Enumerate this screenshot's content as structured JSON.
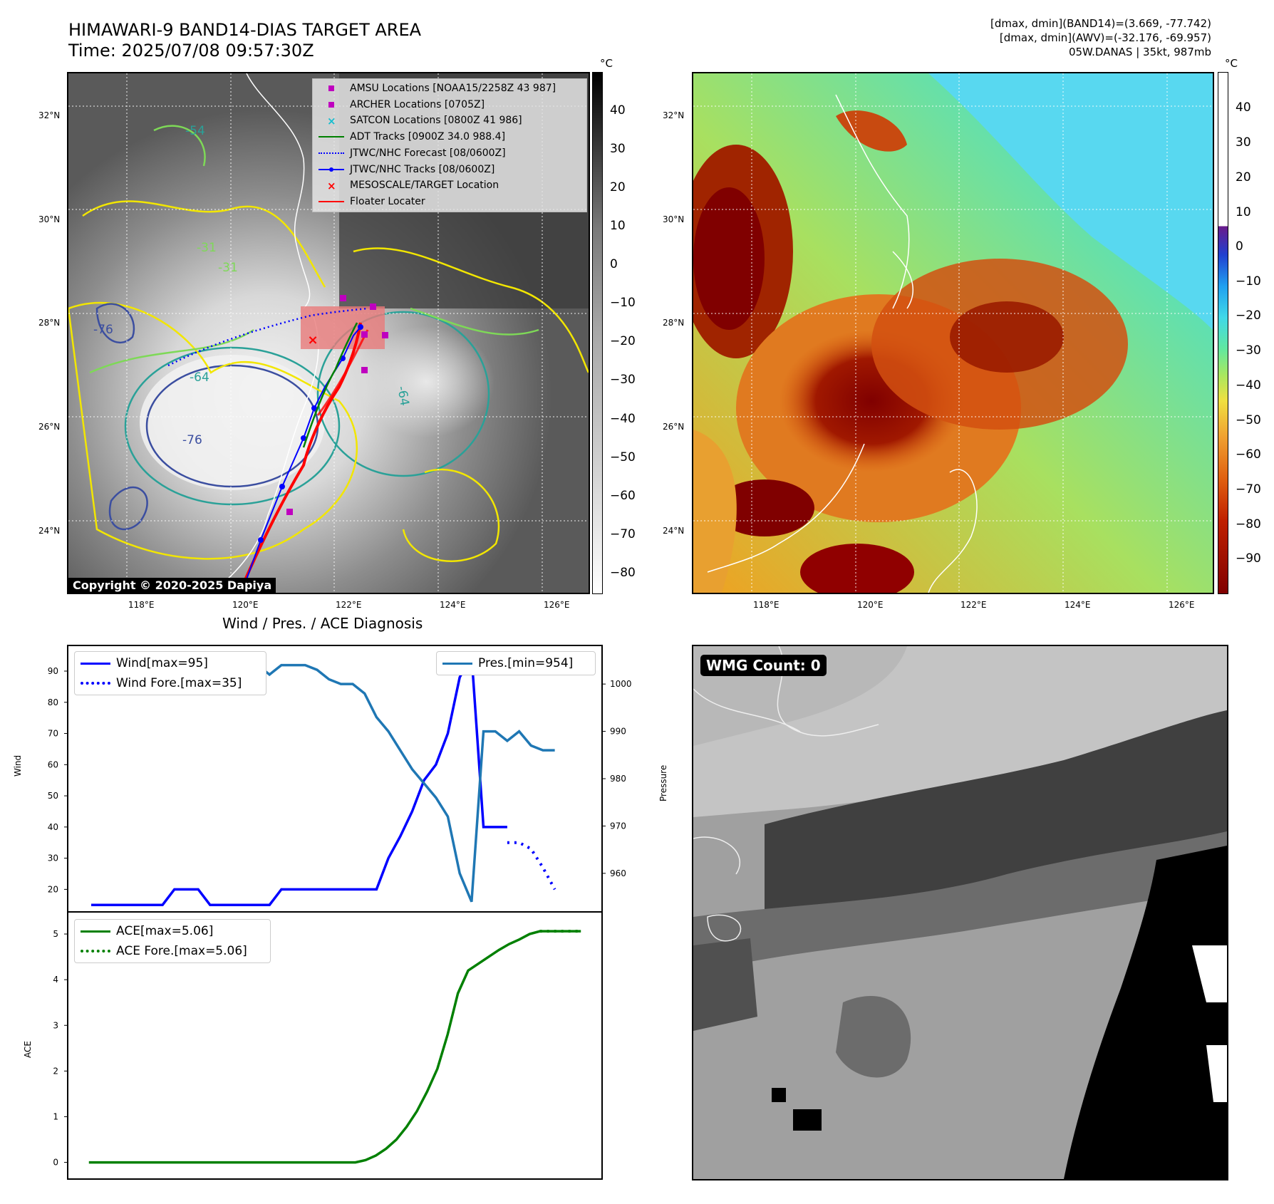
{
  "header": {
    "title_line1": "HIMAWARI-9 BAND14-DIAS TARGET AREA",
    "title_line2": "Time: 2025/07/08 09:57:30Z",
    "info_line1": "[dmax, dmin](BAND14)=(3.669, -77.742)",
    "info_line2": "[dmax, dmin](AWV)=(-32.176, -69.957)",
    "info_line3": "05W.DANAS | 35kt, 987mb"
  },
  "map": {
    "lat_labels": [
      "32°N",
      "30°N",
      "28°N",
      "26°N",
      "24°N"
    ],
    "lon_labels": [
      "118°E",
      "120°E",
      "122°E",
      "124°E",
      "126°E"
    ],
    "contour_labels": [
      "-54",
      "-31",
      "-76",
      "-64",
      "-76",
      "-31",
      "-64"
    ],
    "copyright": "Copyright © 2020-2025 Dapiya",
    "legend": [
      {
        "label": "AMSU Locations [NOAA15/2258Z 43 987]",
        "color": "#bf00bf",
        "kind": "square"
      },
      {
        "label": "ARCHER Locations [0705Z]",
        "color": "#bf00bf",
        "kind": "square"
      },
      {
        "label": "SATCON Locations [0800Z 41 986]",
        "color": "#17becf",
        "kind": "x"
      },
      {
        "label": "ADT Tracks [0900Z 34.0 988.4]",
        "color": "#008000",
        "kind": "line"
      },
      {
        "label": "JTWC/NHC Forecast [08/0600Z]",
        "color": "#0000ff",
        "kind": "dotted"
      },
      {
        "label": "JTWC/NHC Tracks [08/0600Z]",
        "color": "#0000ff",
        "kind": "linedot"
      },
      {
        "label": "MESOSCALE/TARGET Location",
        "color": "#ff0000",
        "kind": "x"
      },
      {
        "label": "Floater Locater",
        "color": "#ff0000",
        "kind": "line"
      }
    ]
  },
  "colorbar_left": {
    "unit": "°C",
    "ticks": [
      "40",
      "30",
      "20",
      "10",
      "0",
      "−10",
      "−20",
      "−30",
      "−40",
      "−50",
      "−60",
      "−70",
      "−80"
    ]
  },
  "colorbar_right": {
    "unit": "°C",
    "ticks": [
      "40",
      "30",
      "20",
      "10",
      "0",
      "−10",
      "−20",
      "−30",
      "−40",
      "−50",
      "−60",
      "−70",
      "−80",
      "−90"
    ]
  },
  "wind_panel": {
    "title": "Wind / Pres. / ACE Diagnosis",
    "left_axis_label": "Wind",
    "right_axis_label": "Pressure",
    "left_ticks": [
      "90",
      "80",
      "70",
      "60",
      "50",
      "40",
      "30",
      "20"
    ],
    "right_ticks": [
      "1000",
      "990",
      "980",
      "970",
      "960"
    ],
    "legend_wind": "Wind[max=95]",
    "legend_wind_fore": "Wind Fore.[max=35]",
    "legend_pres": "Pres.[min=954]",
    "colors": {
      "wind": "#0000ff",
      "pres": "#1f77b4"
    }
  },
  "ace_panel": {
    "axis_label": "ACE",
    "ticks": [
      "5",
      "4",
      "3",
      "2",
      "1",
      "0"
    ],
    "legend_ace": "ACE[max=5.06]",
    "legend_ace_fore": "ACE Fore.[max=5.06]",
    "color": "#008000"
  },
  "wmg_panel": {
    "label": "WMG Count: 0"
  },
  "chart_data": [
    {
      "type": "line",
      "title": "Wind / Pres. / ACE Diagnosis",
      "xlabel": "",
      "ylabel": "Wind",
      "ylabel_right": "Pressure",
      "ylim": [
        13,
        98
      ],
      "ylim_right": [
        952,
        1008
      ],
      "series": [
        {
          "name": "Wind[max=95]",
          "axis": "left",
          "x": [
            0,
            1,
            2,
            3,
            4,
            5,
            6,
            7,
            8,
            9,
            10,
            11,
            12,
            13,
            14,
            15,
            16,
            17,
            18,
            19,
            20,
            21,
            22,
            23,
            24,
            25,
            26,
            27,
            28,
            29,
            30,
            31,
            32,
            33,
            34,
            35
          ],
          "values": [
            15,
            15,
            15,
            15,
            15,
            15,
            15,
            20,
            20,
            20,
            15,
            15,
            15,
            15,
            15,
            15,
            20,
            20,
            20,
            20,
            20,
            20,
            20,
            20,
            20,
            30,
            37,
            45,
            55,
            60,
            70,
            88,
            95,
            40,
            40,
            40
          ]
        },
        {
          "name": "Wind Fore.[max=35]",
          "axis": "left",
          "x": [
            35,
            36,
            37,
            38,
            39
          ],
          "values": [
            35,
            35,
            33,
            27,
            20
          ]
        },
        {
          "name": "Pres.[min=954]",
          "axis": "right",
          "x": [
            0,
            1,
            2,
            3,
            4,
            5,
            6,
            7,
            8,
            9,
            10,
            11,
            12,
            13,
            14,
            15,
            16,
            17,
            18,
            19,
            20,
            21,
            22,
            23,
            24,
            25,
            26,
            27,
            28,
            29,
            30,
            31,
            32,
            33,
            34,
            35,
            36,
            37,
            38,
            39
          ],
          "values": [
            1005,
            1005,
            1005,
            1005,
            1005,
            1003,
            1003,
            1003,
            1003,
            1002,
            1003,
            1003,
            1004,
            1004,
            1004,
            1002,
            1004,
            1004,
            1004,
            1003,
            1001,
            1000,
            1000,
            998,
            993,
            990,
            986,
            982,
            979,
            976,
            972,
            960,
            954,
            990,
            990,
            988,
            990,
            987,
            986,
            986
          ]
        }
      ]
    },
    {
      "type": "line",
      "title": "",
      "xlabel": "",
      "ylabel": "ACE",
      "ylim": [
        -0.1,
        5.25
      ],
      "series": [
        {
          "name": "ACE[max=5.06]",
          "x": [
            0,
            4,
            8,
            12,
            16,
            20,
            24,
            26,
            27,
            28,
            29,
            30,
            31,
            32,
            33,
            34,
            35,
            36,
            37,
            38,
            39,
            40,
            41,
            42,
            43,
            44,
            45,
            46,
            47,
            48
          ],
          "values": [
            0,
            0,
            0,
            0,
            0,
            0,
            0,
            0,
            0.05,
            0.15,
            0.3,
            0.5,
            0.78,
            1.12,
            1.55,
            2.05,
            2.8,
            3.7,
            4.2,
            4.35,
            4.5,
            4.65,
            4.78,
            4.88,
            5.0,
            5.06,
            5.06,
            5.06,
            5.06,
            5.06
          ]
        },
        {
          "name": "ACE Fore.[max=5.06]",
          "x": [
            44,
            45,
            46,
            47,
            48
          ],
          "values": [
            5.06,
            5.06,
            5.06,
            5.06,
            5.06
          ]
        }
      ]
    }
  ]
}
